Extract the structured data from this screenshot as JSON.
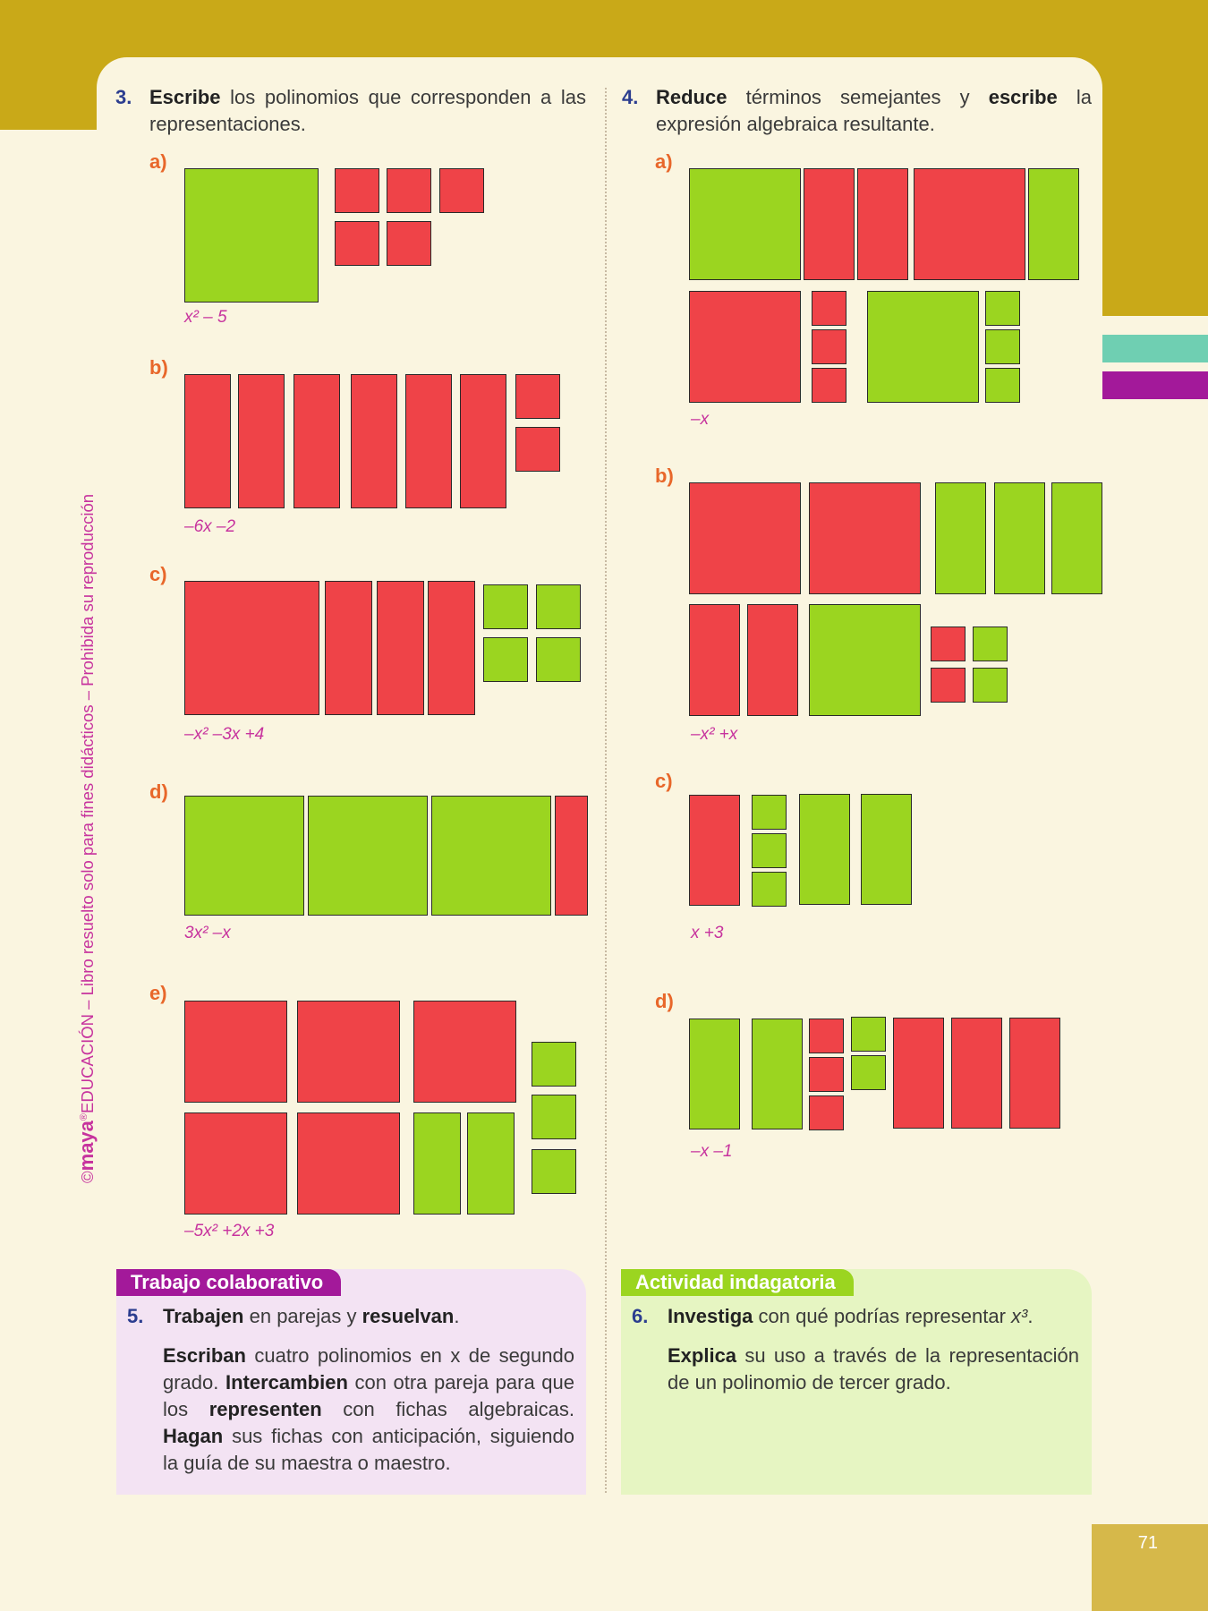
{
  "side_note": {
    "copyright": "©",
    "brand": "maya",
    "reg": "®",
    "text": "EDUCACIÓN – Libro resuelto solo para fines didácticos – Prohibida su reproducción"
  },
  "q3": {
    "number": "3.",
    "verb": "Escribe",
    "text": "los polinomios que corresponden a las representaciones.",
    "items": [
      {
        "label": "a)",
        "answer": "x² – 5"
      },
      {
        "label": "b)",
        "answer": "–6x –2"
      },
      {
        "label": "c)",
        "answer": "–x² –3x +4"
      },
      {
        "label": "d)",
        "answer": "3x² –x"
      },
      {
        "label": "e)",
        "answer": "–5x² +2x +3"
      }
    ]
  },
  "q4": {
    "number": "4.",
    "verb1": "Reduce",
    "text1": "términos semejantes y",
    "verb2": "escribe",
    "text2": "la expresión algebraica resultante.",
    "items": [
      {
        "label": "a)",
        "answer": "–x"
      },
      {
        "label": "b)",
        "answer": "–x² +x"
      },
      {
        "label": "c)",
        "answer": "x +3"
      },
      {
        "label": "d)",
        "answer": "–x –1"
      }
    ]
  },
  "box_left": {
    "title": "Trabajo colaborativo",
    "number": "5.",
    "line1_b1": "Trabajen",
    "line1_t1": "en parejas y",
    "line1_b2": "resuelvan",
    "line1_end": ".",
    "p_b1": "Escriban",
    "p_t1": "cuatro polinomios en x de segundo grado.",
    "p_b2": "Intercambien",
    "p_t2": "con otra pareja para que los",
    "p_b3": "representen",
    "p_t3": "con fichas algebraicas.",
    "p_b4": "Hagan",
    "p_t4": "sus fichas con anticipación, siguiendo la guía de su maestra o maestro.",
    "color": "#a3199a",
    "bg": "#f3e3f3"
  },
  "box_right": {
    "title": "Actividad indagatoria",
    "number": "6.",
    "line1_b1": "Investiga",
    "line1_t1": "con qué podrías representar",
    "line1_math": "x³",
    "line1_end": ".",
    "p_b1": "Explica",
    "p_t1": "su uso a través de la representación de un polinomio de tercer grado.",
    "color": "#9bd520",
    "bg": "#e6f5c2"
  },
  "page_number": "71",
  "colors": {
    "positive_tile": "#9bd520",
    "negative_tile": "#ef4348",
    "accent_gold": "#c9a918"
  }
}
